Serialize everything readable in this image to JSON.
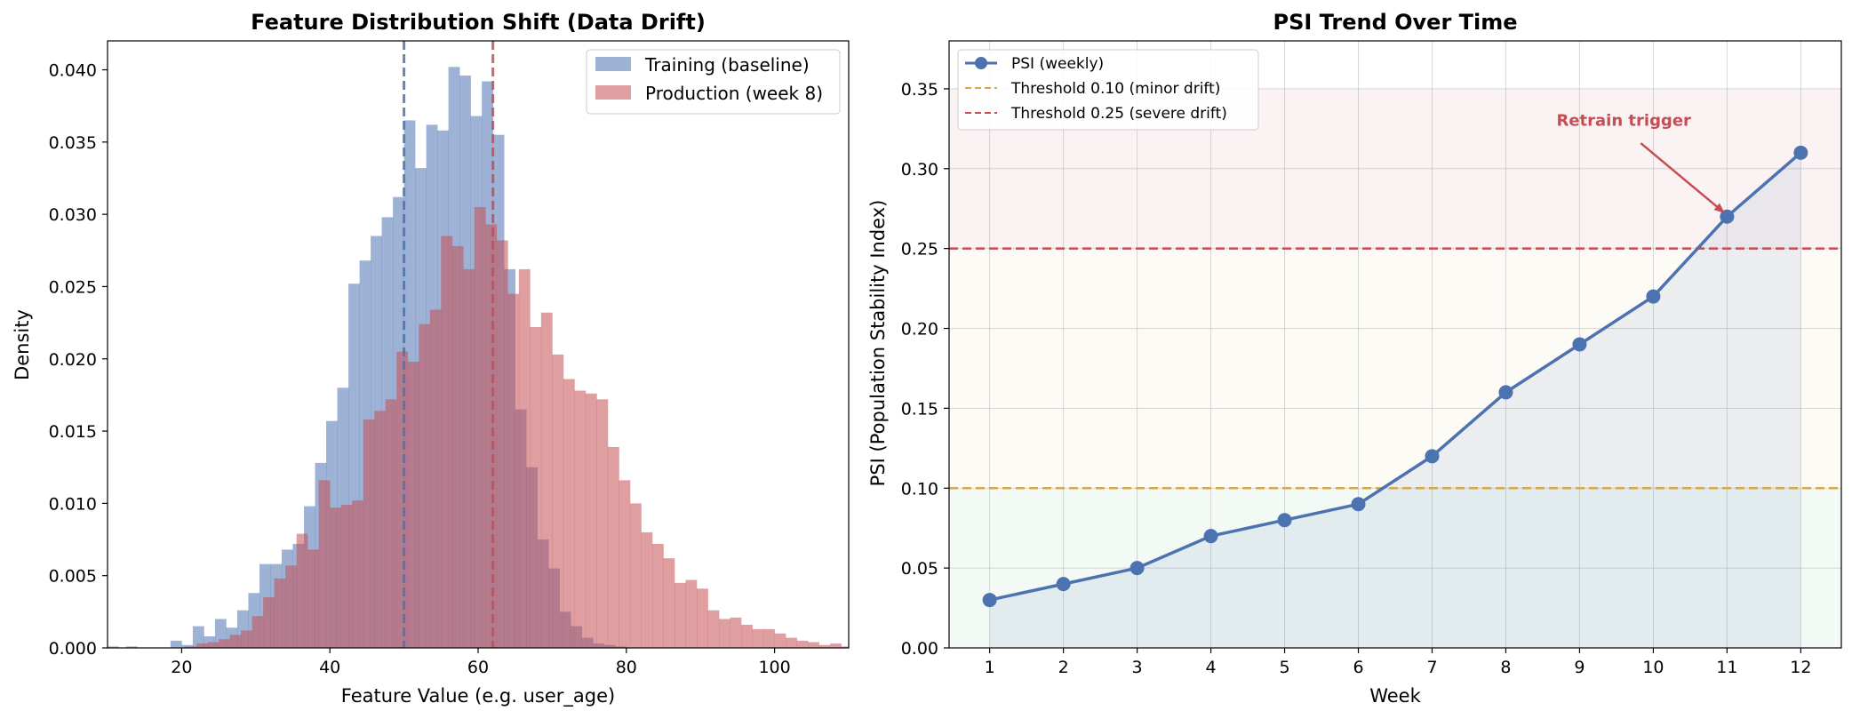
{
  "chart_data": [
    {
      "type": "bar",
      "title": "Feature Distribution Shift (Data Drift)",
      "xlabel": "Feature Value (e.g. user_age)",
      "ylabel": "Density",
      "xlim": [
        10,
        110
      ],
      "ylim": [
        0,
        0.042
      ],
      "xticks": [
        20,
        40,
        60,
        80,
        100
      ],
      "yticks": [
        0.0,
        0.005,
        0.01,
        0.015,
        0.02,
        0.025,
        0.03,
        0.035,
        0.04
      ],
      "ytick_labels": [
        "0.000",
        "0.005",
        "0.010",
        "0.015",
        "0.020",
        "0.025",
        "0.030",
        "0.035",
        "0.040"
      ],
      "grid": false,
      "legend": "top-right",
      "vlines": [
        {
          "series": "Training (baseline)",
          "x": 50
        },
        {
          "series": "Production (week 8)",
          "x": 62
        }
      ],
      "series": [
        {
          "name": "Training (baseline)",
          "color": "#4c72b0",
          "bin_start": 12.5,
          "bin_width": 1.5,
          "values": [
            0.0001,
            0,
            0,
            0,
            0.0005,
            0.0002,
            0.0015,
            0.0008,
            0.002,
            0.0014,
            0.0026,
            0.0038,
            0.0058,
            0.0058,
            0.0068,
            0.0072,
            0.0098,
            0.0128,
            0.0157,
            0.018,
            0.0252,
            0.0268,
            0.0285,
            0.0298,
            0.0312,
            0.0365,
            0.0332,
            0.0362,
            0.0358,
            0.0402,
            0.0396,
            0.0368,
            0.0392,
            0.0355,
            0.0262,
            0.0165,
            0.0125,
            0.0075,
            0.0055,
            0.0025,
            0.0015,
            0.0007,
            0.0003,
            0.0002,
            0.0001,
            0,
            0,
            0
          ]
        },
        {
          "name": "Production (week 8)",
          "color": "#c44e52",
          "bin_start": 10,
          "bin_width": 1.5,
          "values": [
            0.0001,
            0,
            0,
            0,
            0,
            0,
            0,
            0.0001,
            0.0003,
            0.0004,
            0.0006,
            0.0009,
            0.0012,
            0.0022,
            0.0035,
            0.0048,
            0.0057,
            0.0079,
            0.0068,
            0.0116,
            0.0097,
            0.0099,
            0.0102,
            0.0158,
            0.0164,
            0.0172,
            0.0205,
            0.0198,
            0.0224,
            0.0234,
            0.0285,
            0.0278,
            0.0262,
            0.0305,
            0.0293,
            0.0282,
            0.0245,
            0.0262,
            0.0222,
            0.0232,
            0.0203,
            0.0186,
            0.0178,
            0.0176,
            0.0172,
            0.0139,
            0.0116,
            0.01,
            0.008,
            0.0072,
            0.0062,
            0.0045,
            0.0047,
            0.0041,
            0.0026,
            0.002,
            0.0021,
            0.0016,
            0.0013,
            0.0013,
            0.001,
            0.0007,
            0.0005,
            0.0004,
            0.0002,
            0.0003,
            0.0001
          ]
        }
      ]
    },
    {
      "type": "line",
      "title": "PSI Trend Over Time",
      "xlabel": "Week",
      "ylabel": "PSI (Population Stability Index)",
      "x": [
        1,
        2,
        3,
        4,
        5,
        6,
        7,
        8,
        9,
        10,
        11,
        12
      ],
      "xlim": [
        0.45,
        12.55
      ],
      "ylim": [
        0,
        0.38
      ],
      "yticks": [
        0.0,
        0.05,
        0.1,
        0.15,
        0.2,
        0.25,
        0.3,
        0.35
      ],
      "ytick_labels": [
        "0.00",
        "0.05",
        "0.10",
        "0.15",
        "0.20",
        "0.25",
        "0.30",
        "0.35"
      ],
      "grid": true,
      "legend": "top-left",
      "series": [
        {
          "name": "PSI (weekly)",
          "color": "#4c72b0",
          "values": [
            0.03,
            0.04,
            0.05,
            0.07,
            0.08,
            0.09,
            0.12,
            0.16,
            0.19,
            0.22,
            0.27,
            0.31
          ]
        }
      ],
      "thresholds": [
        {
          "name": "Threshold 0.10 (minor drift)",
          "y": 0.1,
          "color": "#d4a84b"
        },
        {
          "name": "Threshold 0.25 (severe drift)",
          "y": 0.25,
          "color": "#c44e52"
        }
      ],
      "bands": [
        {
          "from": 0.0,
          "to": 0.1,
          "color": "#55a868"
        },
        {
          "from": 0.1,
          "to": 0.25,
          "color": "#e5c07b"
        },
        {
          "from": 0.25,
          "to": 0.35,
          "color": "#c44e52"
        }
      ],
      "annotation": {
        "text": "Retrain trigger",
        "x": 11,
        "y": 0.27,
        "text_x": 9.6,
        "text_y": 0.327,
        "color": "#c44e52"
      }
    }
  ]
}
